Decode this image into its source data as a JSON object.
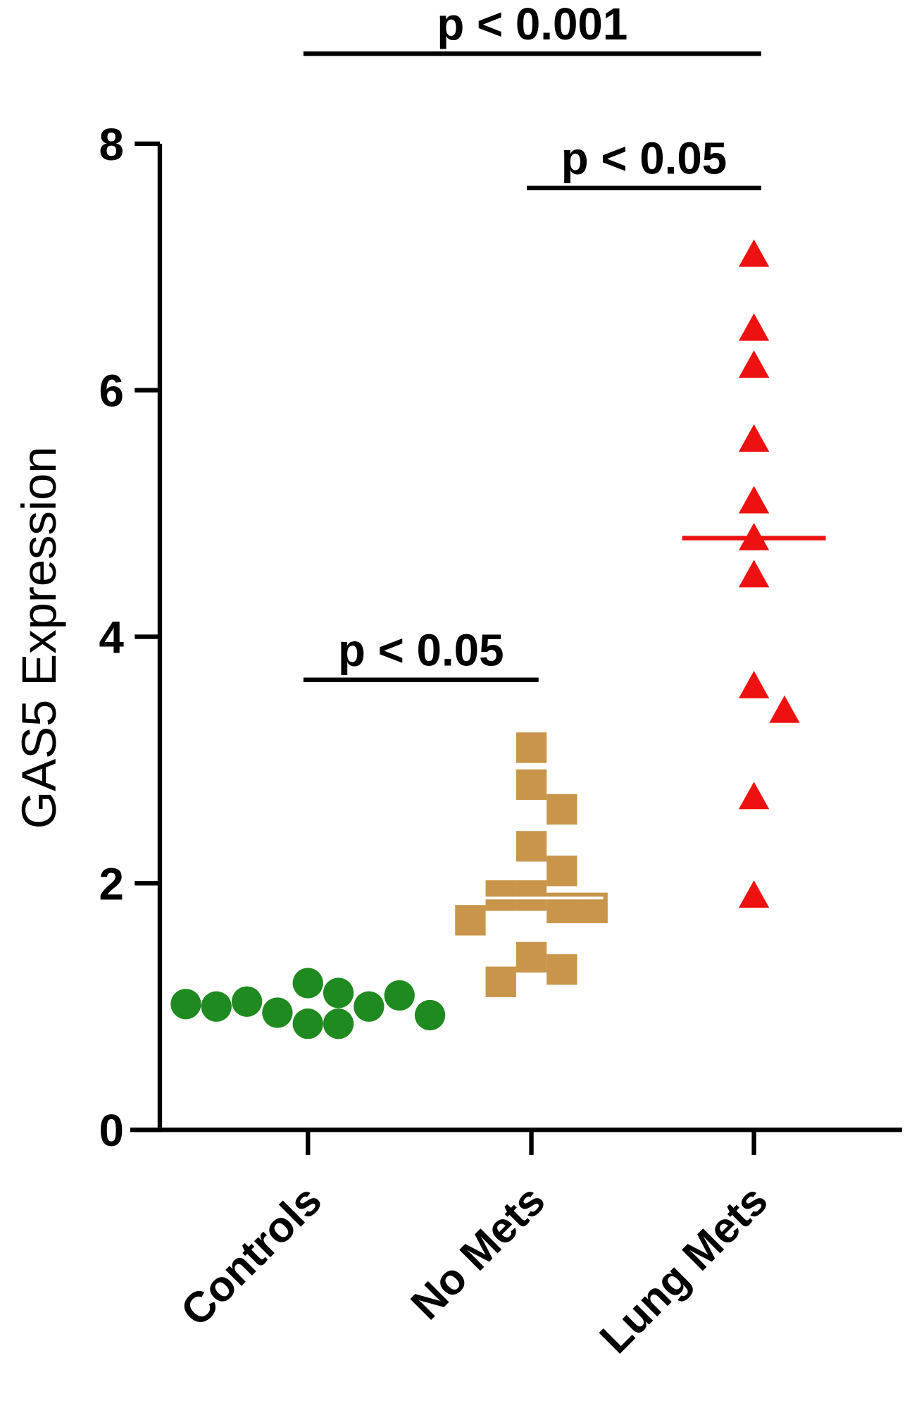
{
  "chart_data": {
    "type": "scatter",
    "ylabel": "GAS5 Expression",
    "categories": [
      "Controls",
      "No Mets",
      "Lung Mets"
    ],
    "ylim": [
      0,
      8
    ],
    "yticks": [
      0,
      2,
      4,
      6,
      8
    ],
    "series": [
      {
        "name": "Controls",
        "color": "#1f8a1f",
        "marker": "circle",
        "values": [
          1.19,
          1.11,
          0.95,
          1.0,
          1.04,
          1.09,
          0.86,
          1.0,
          0.86,
          0.93,
          1.02
        ]
      },
      {
        "name": "No Mets",
        "color": "#c8954a",
        "marker": "square",
        "median": 1.88,
        "values": [
          3.1,
          2.8,
          2.6,
          2.3,
          2.1,
          1.9,
          1.9,
          1.8,
          1.8,
          1.7,
          1.4,
          1.3,
          1.2
        ]
      },
      {
        "name": "Lung Mets",
        "color": "#ee1111",
        "marker": "triangle",
        "median": 4.8,
        "values": [
          7.1,
          6.5,
          6.2,
          5.6,
          5.1,
          4.8,
          4.5,
          3.6,
          3.4,
          2.7,
          1.9
        ]
      }
    ],
    "annotations": [
      {
        "text": "p < 0.001",
        "from": 0,
        "to": 2,
        "y": 8.73
      },
      {
        "text": "p < 0.05",
        "from": 1,
        "to": 2,
        "y": 7.64
      },
      {
        "text": "p < 0.05",
        "from": 0,
        "to": 1,
        "y": 3.65
      }
    ]
  }
}
